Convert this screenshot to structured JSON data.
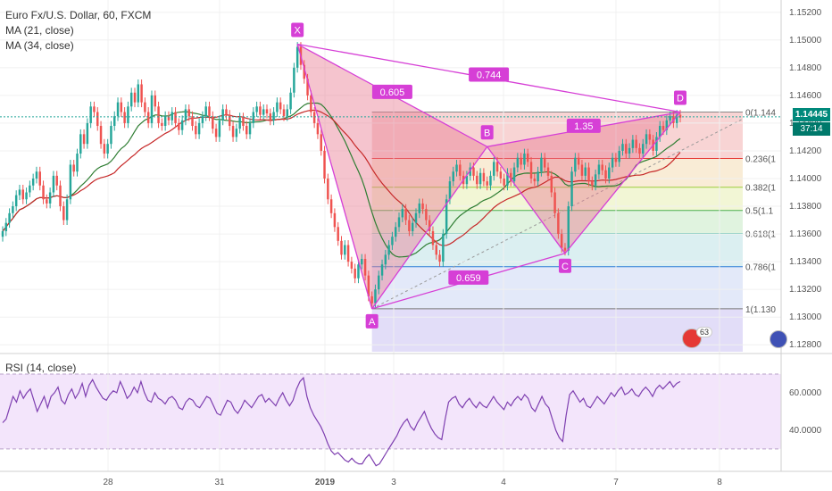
{
  "header": {
    "symbol_line": "Euro Fx/U.S. Dollar, 60, FXCM",
    "ma21": "MA (21, close)",
    "ma34": "MA (34, close)",
    "rsi_label": "RSI (14, close)"
  },
  "price_tag": {
    "value": "1.14445",
    "timer": "37:14"
  },
  "badge": {
    "count": "63"
  },
  "chart_data": {
    "type": "candlestick",
    "price_axis": {
      "ticks": [
        "1.15200",
        "1.15000",
        "1.14800",
        "1.14600",
        "1.14400",
        "1.14200",
        "1.14000",
        "1.13800",
        "1.13600",
        "1.13400",
        "1.13200",
        "1.13000",
        "1.12800"
      ],
      "range": [
        1.1275,
        1.1525
      ]
    },
    "rsi_axis": {
      "ticks": [
        "60.0000",
        "40.0000"
      ],
      "range": [
        18,
        80
      ],
      "bands": [
        70,
        30
      ]
    },
    "x_ticks": [
      "28",
      "31",
      "2019",
      "3",
      "4",
      "7",
      "8"
    ],
    "harmonic_points": [
      {
        "name": "X",
        "price": 1.1497
      },
      {
        "name": "A",
        "price": 1.1306
      },
      {
        "name": "B",
        "price": 1.1423
      },
      {
        "name": "C",
        "price": 1.1346
      },
      {
        "name": "D",
        "price": 1.1448
      }
    ],
    "ratios": [
      {
        "label": "0.605",
        "between": "XA-B"
      },
      {
        "label": "0.744",
        "between": "X-D"
      },
      {
        "label": "1.35",
        "between": "B-D"
      },
      {
        "label": "0.659",
        "between": "A-C"
      }
    ],
    "fib_levels": [
      {
        "label": "0(1.144",
        "ratio": 0,
        "color": "#888888"
      },
      {
        "label": "0.236(1",
        "ratio": 0.236,
        "color": "#e53935"
      },
      {
        "label": "0.382(1",
        "ratio": 0.382,
        "color": "#9ccc3a"
      },
      {
        "label": "0.5(1.1",
        "ratio": 0.5,
        "color": "#4caf50"
      },
      {
        "label": "0.618(1",
        "ratio": 0.618,
        "color": "#26a69a"
      },
      {
        "label": "0.786(1",
        "ratio": 0.786,
        "color": "#2e7dd7"
      },
      {
        "label": "1(1.130",
        "ratio": 1,
        "color": "#777777"
      }
    ],
    "fib_range": [
      1.1448,
      1.1306
    ],
    "closes": [
      1.1362,
      1.1368,
      1.1375,
      1.138,
      1.1388,
      1.1392,
      1.1385,
      1.139,
      1.1395,
      1.14,
      1.1405,
      1.1395,
      1.1385,
      1.1382,
      1.139,
      1.1402,
      1.1395,
      1.138,
      1.137,
      1.1385,
      1.141,
      1.1405,
      1.1418,
      1.1432,
      1.1425,
      1.144,
      1.1452,
      1.1448,
      1.1438,
      1.1425,
      1.1418,
      1.1425,
      1.1438,
      1.1445,
      1.1455,
      1.1448,
      1.144,
      1.1452,
      1.1462,
      1.1455,
      1.1468,
      1.1455,
      1.1448,
      1.144,
      1.146,
      1.1452,
      1.144,
      1.1438,
      1.1445,
      1.1442,
      1.1448,
      1.144,
      1.1435,
      1.1442,
      1.145,
      1.1445,
      1.1438,
      1.1432,
      1.144,
      1.1445,
      1.1452,
      1.1445,
      1.1436,
      1.143,
      1.1442,
      1.145,
      1.1446,
      1.1438,
      1.143,
      1.1436,
      1.1444,
      1.1438,
      1.1432,
      1.144,
      1.1448,
      1.1452,
      1.1446,
      1.145,
      1.1447,
      1.1442,
      1.1448,
      1.1455,
      1.145,
      1.1445,
      1.145,
      1.1462,
      1.148,
      1.1495,
      1.1482,
      1.1472,
      1.146,
      1.1448,
      1.144,
      1.1432,
      1.142,
      1.14,
      1.1385,
      1.1375,
      1.1365,
      1.1355,
      1.1345,
      1.1352,
      1.134,
      1.1335,
      1.1328,
      1.1338,
      1.1342,
      1.133,
      1.1315,
      1.131,
      1.132,
      1.133,
      1.1338,
      1.1345,
      1.1352,
      1.1358,
      1.1365,
      1.1372,
      1.1378,
      1.137,
      1.1362,
      1.1368,
      1.1375,
      1.1382,
      1.1378,
      1.137,
      1.1362,
      1.1352,
      1.1345,
      1.134,
      1.136,
      1.1385,
      1.1398,
      1.1405,
      1.141,
      1.1402,
      1.1396,
      1.1402,
      1.1408,
      1.1402,
      1.1396,
      1.1404,
      1.1398,
      1.1395,
      1.1402,
      1.1412,
      1.1405,
      1.14,
      1.1395,
      1.1404,
      1.1398,
      1.1408,
      1.1415,
      1.141,
      1.1418,
      1.1412,
      1.14,
      1.1398,
      1.1405,
      1.1415,
      1.1408,
      1.1402,
      1.139,
      1.1375,
      1.136,
      1.135,
      1.1348,
      1.138,
      1.1405,
      1.1415,
      1.141,
      1.1402,
      1.1408,
      1.1398,
      1.1395,
      1.1403,
      1.141,
      1.1406,
      1.14,
      1.1408,
      1.1415,
      1.1412,
      1.142,
      1.1425,
      1.1418,
      1.1422,
      1.1428,
      1.1422,
      1.1418,
      1.1425,
      1.1432,
      1.1428,
      1.142,
      1.143,
      1.1438,
      1.1435,
      1.1442,
      1.1445,
      1.144,
      1.1446,
      1.1444
    ],
    "rsi": [
      44,
      46,
      52,
      58,
      55,
      61,
      57,
      60,
      62,
      56,
      50,
      54,
      58,
      52,
      58,
      60,
      63,
      56,
      54,
      59,
      62,
      57,
      60,
      65,
      58,
      64,
      67,
      63,
      60,
      57,
      56,
      59,
      61,
      60,
      66,
      62,
      57,
      59,
      63,
      60,
      66,
      60,
      56,
      55,
      60,
      57,
      56,
      54,
      57,
      58,
      56,
      52,
      51,
      55,
      57,
      56,
      53,
      52,
      55,
      58,
      57,
      53,
      49,
      48,
      52,
      56,
      55,
      51,
      49,
      52,
      56,
      54,
      52,
      55,
      58,
      59,
      55,
      57,
      55,
      53,
      57,
      60,
      56,
      53,
      56,
      62,
      66,
      68,
      58,
      52,
      48,
      45,
      42,
      38,
      33,
      29,
      27,
      28,
      26,
      24,
      23,
      25,
      23,
      22,
      22,
      25,
      27,
      24,
      21,
      22,
      25,
      28,
      31,
      34,
      37,
      41,
      44,
      46,
      42,
      40,
      44,
      47,
      50,
      45,
      41,
      38,
      36,
      35,
      46,
      55,
      57,
      58,
      54,
      52,
      55,
      57,
      54,
      52,
      55,
      53,
      52,
      55,
      58,
      55,
      53,
      51,
      55,
      53,
      56,
      58,
      56,
      59,
      57,
      52,
      50,
      54,
      58,
      54,
      52,
      46,
      40,
      36,
      34,
      48,
      59,
      61,
      58,
      55,
      57,
      53,
      52,
      55,
      58,
      56,
      54,
      57,
      60,
      58,
      61,
      63,
      59,
      60,
      62,
      59,
      58,
      61,
      63,
      61,
      58,
      62,
      64,
      62,
      64,
      66,
      63,
      65,
      66
    ]
  }
}
